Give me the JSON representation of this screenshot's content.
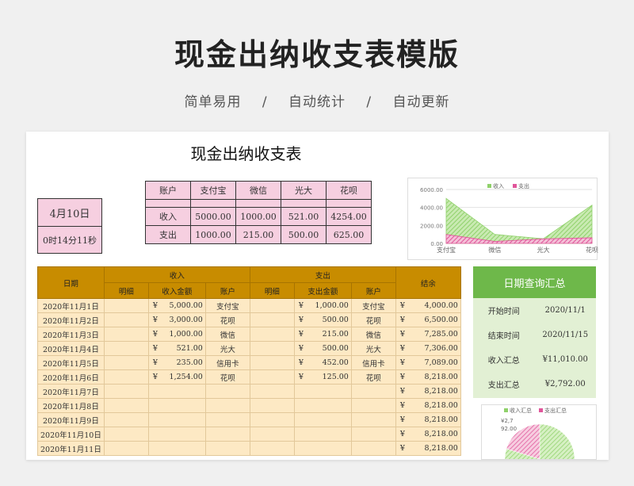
{
  "hero": {
    "title": "现金出纳收支表模版",
    "tags": [
      "简单易用",
      "自动统计",
      "自动更新"
    ],
    "separator": "/"
  },
  "sheet": {
    "title": "现金出纳收支表",
    "date": "4月10日",
    "time": "0时14分11秒"
  },
  "accounts": {
    "header": [
      "账户",
      "支付宝",
      "微信",
      "光大",
      "花呗"
    ],
    "rows": [
      [
        "收入",
        "5000.00",
        "1000.00",
        "521.00",
        "4254.00"
      ],
      [
        "支出",
        "1000.00",
        "215.00",
        "500.00",
        "625.00"
      ]
    ]
  },
  "ledger": {
    "h_date": "日期",
    "h_income": "收入",
    "h_expense": "支出",
    "h_balance": "结余",
    "h_detail": "明细",
    "h_income_amt": "收入金额",
    "h_account": "账户",
    "h_expense_amt": "支出金额",
    "currency": "¥",
    "rows": [
      {
        "date": "2020年11月1日",
        "inc": "5,000.00",
        "inc_acct": "支付宝",
        "exp": "1,000.00",
        "exp_acct": "支付宝",
        "bal": "4,000.00"
      },
      {
        "date": "2020年11月2日",
        "inc": "3,000.00",
        "inc_acct": "花呗",
        "exp": "500.00",
        "exp_acct": "花呗",
        "bal": "6,500.00"
      },
      {
        "date": "2020年11月3日",
        "inc": "1,000.00",
        "inc_acct": "微信",
        "exp": "215.00",
        "exp_acct": "微信",
        "bal": "7,285.00"
      },
      {
        "date": "2020年11月4日",
        "inc": "521.00",
        "inc_acct": "光大",
        "exp": "500.00",
        "exp_acct": "光大",
        "bal": "7,306.00"
      },
      {
        "date": "2020年11月5日",
        "inc": "235.00",
        "inc_acct": "信用卡",
        "exp": "452.00",
        "exp_acct": "信用卡",
        "bal": "7,089.00"
      },
      {
        "date": "2020年11月6日",
        "inc": "1,254.00",
        "inc_acct": "花呗",
        "exp": "125.00",
        "exp_acct": "花呗",
        "bal": "8,218.00"
      },
      {
        "date": "2020年11月7日",
        "inc": "",
        "inc_acct": "",
        "exp": "",
        "exp_acct": "",
        "bal": "8,218.00"
      },
      {
        "date": "2020年11月8日",
        "inc": "",
        "inc_acct": "",
        "exp": "",
        "exp_acct": "",
        "bal": "8,218.00"
      },
      {
        "date": "2020年11月9日",
        "inc": "",
        "inc_acct": "",
        "exp": "",
        "exp_acct": "",
        "bal": "8,218.00"
      },
      {
        "date": "2020年11月10日",
        "inc": "",
        "inc_acct": "",
        "exp": "",
        "exp_acct": "",
        "bal": "8,218.00"
      },
      {
        "date": "2020年11月11日",
        "inc": "",
        "inc_acct": "",
        "exp": "",
        "exp_acct": "",
        "bal": "8,218.00"
      }
    ]
  },
  "query": {
    "title": "日期查询汇总",
    "rows": [
      {
        "label": "开始时间",
        "value": "2020/11/1"
      },
      {
        "label": "结束时间",
        "value": "2020/11/15"
      },
      {
        "label": "收入汇总",
        "value": "¥11,010.00"
      },
      {
        "label": "支出汇总",
        "value": "¥2,792.00"
      }
    ]
  },
  "chart_data": [
    {
      "type": "area",
      "categories": [
        "支付宝",
        "微信",
        "光大",
        "花呗"
      ],
      "series": [
        {
          "name": "收入",
          "values": [
            5000,
            1000,
            521,
            4254
          ],
          "color": "#8fd16a"
        },
        {
          "name": "支出",
          "values": [
            1000,
            215,
            500,
            625
          ],
          "color": "#e0559a"
        }
      ],
      "ylim": [
        0,
        6000
      ],
      "yticks": [
        "6000.00",
        "4000.00",
        "2000.00",
        "0.00"
      ],
      "legend": "top"
    },
    {
      "type": "pie",
      "series": [
        {
          "name": "收入汇总",
          "value": 11010,
          "color": "#8fd16a"
        },
        {
          "name": "支出汇总",
          "value": 2792,
          "color": "#e0559a"
        }
      ],
      "labels": [
        "¥2,7",
        "92.00"
      ]
    }
  ]
}
